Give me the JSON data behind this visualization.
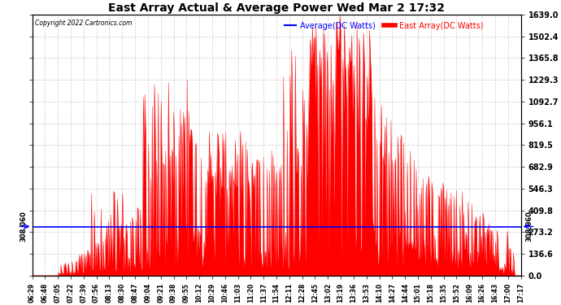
{
  "title": "East Array Actual & Average Power Wed Mar 2 17:32",
  "copyright": "Copyright 2022 Cartronics.com",
  "legend_average": "Average(DC Watts)",
  "legend_east": "East Array(DC Watts)",
  "average_value": 308.06,
  "average_label": "308.060",
  "ymax": 1639.0,
  "ymin": 0.0,
  "yticks": [
    0.0,
    136.6,
    273.2,
    409.8,
    546.3,
    682.9,
    819.5,
    956.1,
    1092.7,
    1229.3,
    1365.8,
    1502.4,
    1639.0
  ],
  "background_color": "#ffffff",
  "fill_color": "#ff0000",
  "line_color": "#ff0000",
  "average_line_color": "#0000ff",
  "grid_color": "#cccccc",
  "title_color": "#000000",
  "copyright_color": "#000000",
  "xtick_labels": [
    "06:29",
    "06:48",
    "07:05",
    "07:22",
    "07:39",
    "07:56",
    "08:13",
    "08:30",
    "08:47",
    "09:04",
    "09:21",
    "09:38",
    "09:55",
    "10:12",
    "10:29",
    "10:46",
    "11:03",
    "11:20",
    "11:37",
    "11:54",
    "12:11",
    "12:28",
    "12:45",
    "13:02",
    "13:19",
    "13:36",
    "13:53",
    "14:10",
    "14:27",
    "14:44",
    "15:01",
    "15:18",
    "15:35",
    "15:52",
    "16:09",
    "16:26",
    "16:43",
    "17:00",
    "17:17"
  ],
  "n_xticks": 39,
  "figwidth": 6.9,
  "figheight": 3.75,
  "dpi": 100
}
